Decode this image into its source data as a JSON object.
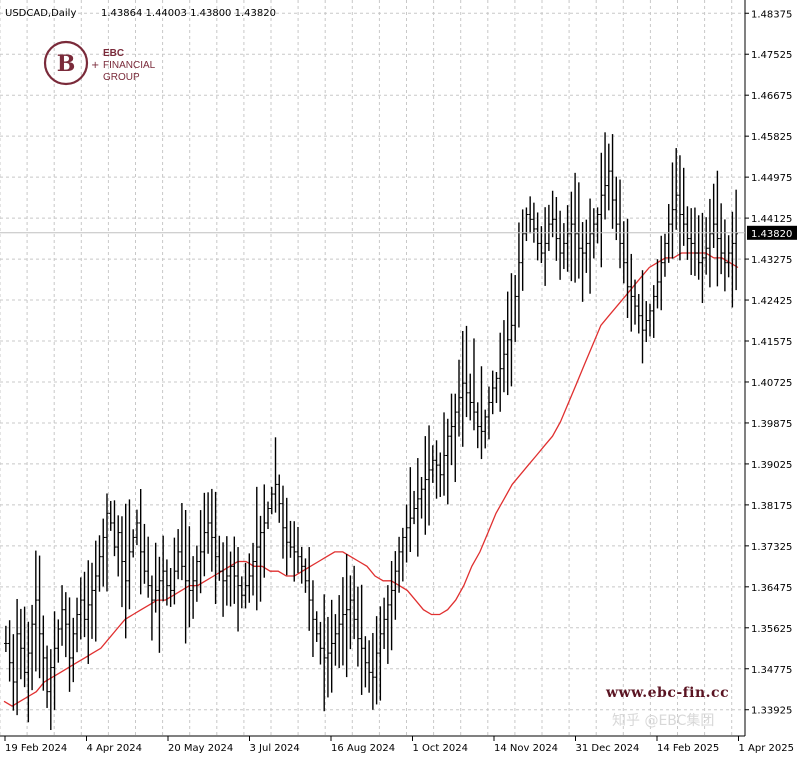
{
  "header": {
    "symbol": "USDCAD,Daily",
    "ohlc": "1.43864 1.44003 1.43800 1.43820"
  },
  "logo": {
    "line1": "EBC",
    "line2": "FINANCIAL",
    "line3": "GROUP"
  },
  "watermarks": {
    "site": "www.ebc-fin.cc",
    "zhihu": "知乎 @EBC集团"
  },
  "colors": {
    "candles": "#000000",
    "moving_average": "#e03030",
    "grid": "#c8c8c8",
    "current_price_line": "#c0c0c0",
    "price_badge_bg": "#000000",
    "price_badge_text": "#ffffff",
    "logo": "#7a2a3a"
  },
  "chart_data": {
    "type": "ohlc",
    "symbol": "USDCAD",
    "timeframe": "Daily",
    "current_price": 1.4382,
    "ylim": [
      1.3338,
      1.4865
    ],
    "y_ticks": [
      "1.48375",
      "1.47525",
      "1.46675",
      "1.45825",
      "1.44975",
      "1.44125",
      "1.43275",
      "1.42425",
      "1.41575",
      "1.40725",
      "1.39875",
      "1.39025",
      "1.38175",
      "1.37325",
      "1.36475",
      "1.35625",
      "1.34775",
      "1.33925"
    ],
    "x_tick_labels": [
      "19 Feb 2024",
      "4 Apr 2024",
      "20 May 2024",
      "3 Jul 2024",
      "16 Aug 2024",
      "1 Oct 2024",
      "14 Nov 2024",
      "31 Dec 2024",
      "14 Feb 2025",
      "1 Apr 2025"
    ],
    "grid": true,
    "price_path": [
      1.353,
      1.349,
      1.345,
      1.355,
      1.352,
      1.347,
      1.351,
      1.357,
      1.362,
      1.355,
      1.35,
      1.343,
      1.348,
      1.352,
      1.356,
      1.36,
      1.357,
      1.35,
      1.355,
      1.359,
      1.362,
      1.358,
      1.361,
      1.364,
      1.367,
      1.371,
      1.375,
      1.38,
      1.378,
      1.373,
      1.376,
      1.37,
      1.366,
      1.372,
      1.375,
      1.378,
      1.372,
      1.368,
      1.365,
      1.362,
      1.364,
      1.366,
      1.368,
      1.365,
      1.364,
      1.368,
      1.372,
      1.369,
      1.366,
      1.364,
      1.366,
      1.37,
      1.372,
      1.376,
      1.378,
      1.375,
      1.371,
      1.368,
      1.366,
      1.367,
      1.369,
      1.367,
      1.365,
      1.363,
      1.365,
      1.367,
      1.37,
      1.373,
      1.376,
      1.378,
      1.381,
      1.384,
      1.386,
      1.382,
      1.377,
      1.374,
      1.373,
      1.372,
      1.371,
      1.369,
      1.366,
      1.362,
      1.358,
      1.355,
      1.352,
      1.35,
      1.351,
      1.353,
      1.355,
      1.357,
      1.359,
      1.36,
      1.362,
      1.358,
      1.354,
      1.352,
      1.349,
      1.347,
      1.346,
      1.351,
      1.355,
      1.358,
      1.361,
      1.364,
      1.368,
      1.372,
      1.375,
      1.377,
      1.379,
      1.381,
      1.383,
      1.385,
      1.387,
      1.389,
      1.391,
      1.39,
      1.388,
      1.392,
      1.396,
      1.398,
      1.401,
      1.404,
      1.407,
      1.405,
      1.403,
      1.401,
      1.398,
      1.397,
      1.4,
      1.403,
      1.406,
      1.408,
      1.41,
      1.413,
      1.416,
      1.419,
      1.425,
      1.432,
      1.438,
      1.442,
      1.441,
      1.439,
      1.436,
      1.434,
      1.436,
      1.44,
      1.441,
      1.437,
      1.434,
      1.436,
      1.438,
      1.44,
      1.438,
      1.435,
      1.434,
      1.436,
      1.438,
      1.44,
      1.442,
      1.446,
      1.448,
      1.451,
      1.445,
      1.44,
      1.436,
      1.432,
      1.427,
      1.425,
      1.423,
      1.421,
      1.418,
      1.42,
      1.422,
      1.425,
      1.428,
      1.432,
      1.436,
      1.44,
      1.443,
      1.446,
      1.442,
      1.44,
      1.437,
      1.436,
      1.434,
      1.432,
      1.433,
      1.435,
      1.438,
      1.44,
      1.437,
      1.434,
      1.432,
      1.434,
      1.436,
      1.438
    ],
    "moving_average": [
      1.341,
      1.34,
      1.341,
      1.342,
      1.343,
      1.345,
      1.346,
      1.347,
      1.348,
      1.349,
      1.35,
      1.351,
      1.352,
      1.354,
      1.356,
      1.358,
      1.359,
      1.36,
      1.361,
      1.362,
      1.362,
      1.363,
      1.364,
      1.365,
      1.365,
      1.366,
      1.367,
      1.368,
      1.369,
      1.37,
      1.37,
      1.369,
      1.369,
      1.368,
      1.368,
      1.367,
      1.367,
      1.368,
      1.369,
      1.37,
      1.371,
      1.372,
      1.372,
      1.371,
      1.37,
      1.369,
      1.367,
      1.366,
      1.366,
      1.365,
      1.364,
      1.362,
      1.36,
      1.359,
      1.359,
      1.36,
      1.362,
      1.365,
      1.369,
      1.372,
      1.376,
      1.38,
      1.383,
      1.386,
      1.388,
      1.39,
      1.392,
      1.394,
      1.396,
      1.399,
      1.403,
      1.407,
      1.411,
      1.415,
      1.419,
      1.421,
      1.423,
      1.425,
      1.427,
      1.429,
      1.431,
      1.432,
      1.433,
      1.433,
      1.434,
      1.434,
      1.434,
      1.434,
      1.433,
      1.433,
      1.432,
      1.431
    ]
  }
}
